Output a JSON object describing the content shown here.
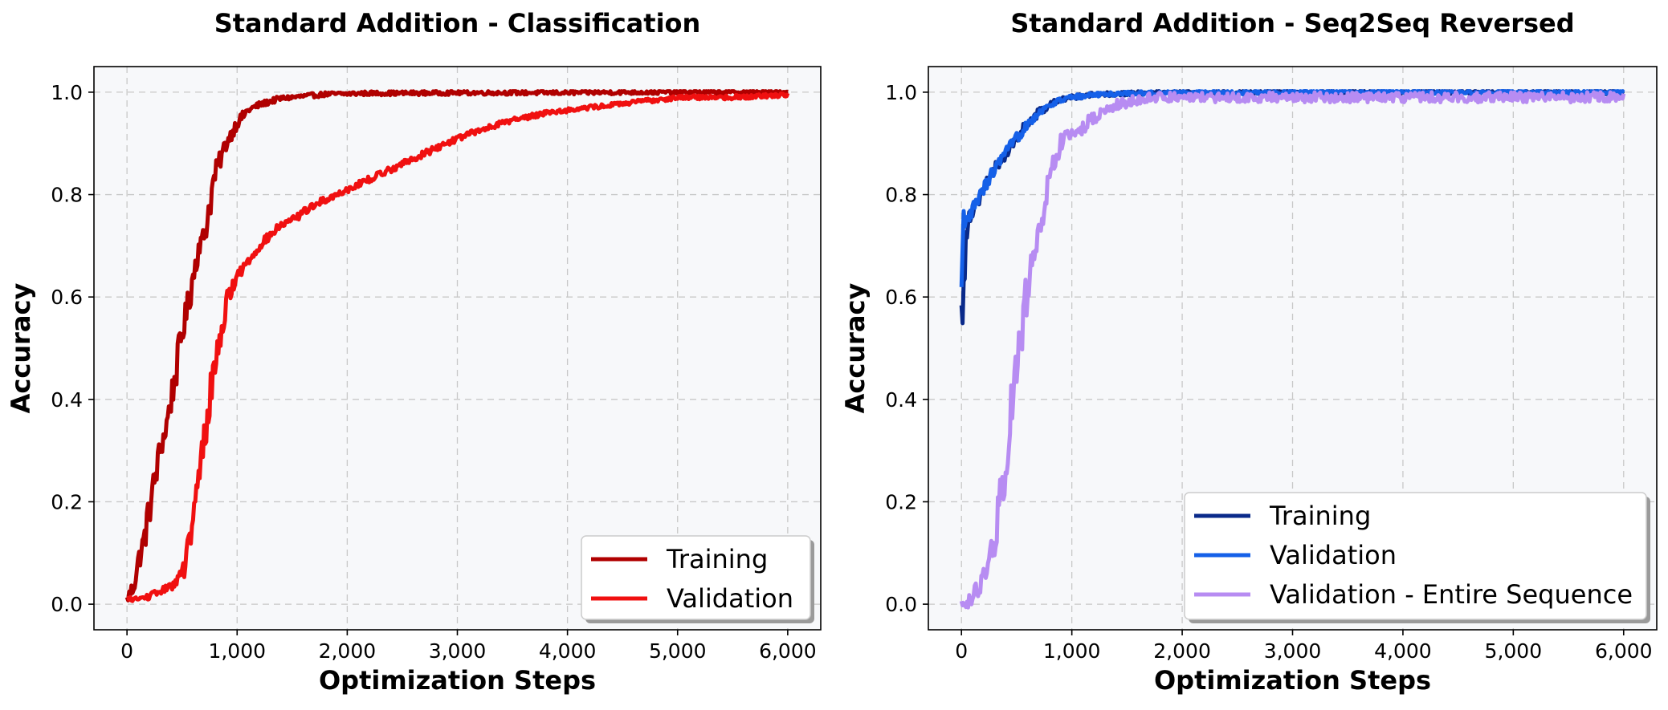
{
  "chart_data": [
    {
      "type": "line",
      "title": "Standard Addition - Classification",
      "xlabel": "Optimization Steps",
      "ylabel": "Accuracy",
      "xlim": [
        -300,
        6300
      ],
      "ylim": [
        -0.05,
        1.05
      ],
      "xticks": [
        0,
        1000,
        2000,
        3000,
        4000,
        5000,
        6000
      ],
      "xtick_labels": [
        "0",
        "1,000",
        "2,000",
        "3,000",
        "4,000",
        "5,000",
        "6,000"
      ],
      "yticks": [
        0.0,
        0.2,
        0.4,
        0.6,
        0.8,
        1.0
      ],
      "ytick_labels": [
        "0.0",
        "0.2",
        "0.4",
        "0.6",
        "0.8",
        "1.0"
      ],
      "grid": true,
      "legend_position": "lower-right",
      "series": [
        {
          "name": "Training",
          "color": "#b00000",
          "x": [
            0,
            50,
            100,
            150,
            200,
            250,
            300,
            350,
            400,
            450,
            500,
            550,
            600,
            650,
            700,
            750,
            800,
            850,
            900,
            950,
            1000,
            1100,
            1200,
            1300,
            1400,
            1500,
            1600,
            1700,
            1800,
            2000,
            2200,
            2500,
            3000,
            3500,
            4000,
            4500,
            5000,
            5500,
            6000
          ],
          "y": [
            0.01,
            0.03,
            0.08,
            0.12,
            0.18,
            0.24,
            0.3,
            0.34,
            0.4,
            0.46,
            0.53,
            0.58,
            0.64,
            0.7,
            0.72,
            0.78,
            0.84,
            0.87,
            0.9,
            0.92,
            0.94,
            0.965,
            0.975,
            0.982,
            0.988,
            0.99,
            0.992,
            0.994,
            0.996,
            0.997,
            0.998,
            0.998,
            0.999,
            0.999,
            0.999,
            1.0,
            1.0,
            1.0,
            1.0
          ]
        },
        {
          "name": "Validation",
          "color": "#f01010",
          "x": [
            0,
            100,
            200,
            300,
            400,
            500,
            550,
            600,
            650,
            700,
            750,
            800,
            850,
            900,
            950,
            1000,
            1100,
            1200,
            1300,
            1400,
            1500,
            1600,
            1700,
            1800,
            1900,
            2000,
            2200,
            2400,
            2600,
            2800,
            3000,
            3200,
            3400,
            3600,
            3800,
            4000,
            4200,
            4400,
            4600,
            4800,
            5000,
            5500,
            6000
          ],
          "y": [
            0.01,
            0.01,
            0.015,
            0.025,
            0.035,
            0.06,
            0.1,
            0.16,
            0.24,
            0.32,
            0.4,
            0.47,
            0.53,
            0.58,
            0.62,
            0.64,
            0.67,
            0.7,
            0.72,
            0.74,
            0.75,
            0.765,
            0.78,
            0.79,
            0.8,
            0.81,
            0.83,
            0.85,
            0.87,
            0.89,
            0.91,
            0.925,
            0.94,
            0.95,
            0.96,
            0.965,
            0.97,
            0.975,
            0.98,
            0.985,
            0.99,
            0.99,
            0.995
          ]
        }
      ]
    },
    {
      "type": "line",
      "title": "Standard Addition - Seq2Seq Reversed",
      "xlabel": "Optimization Steps",
      "ylabel": "Accuracy",
      "xlim": [
        -300,
        6300
      ],
      "ylim": [
        -0.05,
        1.05
      ],
      "xticks": [
        0,
        1000,
        2000,
        3000,
        4000,
        5000,
        6000
      ],
      "xtick_labels": [
        "0",
        "1,000",
        "2,000",
        "3,000",
        "4,000",
        "5,000",
        "6,000"
      ],
      "yticks": [
        0.0,
        0.2,
        0.4,
        0.6,
        0.8,
        1.0
      ],
      "ytick_labels": [
        "0.0",
        "0.2",
        "0.4",
        "0.6",
        "0.8",
        "1.0"
      ],
      "grid": true,
      "legend_position": "lower-right",
      "series": [
        {
          "name": "Training",
          "color": "#0a2a8a",
          "x": [
            0,
            10,
            20,
            40,
            60,
            80,
            100,
            150,
            200,
            250,
            300,
            400,
            500,
            600,
            700,
            800,
            900,
            1000,
            1200,
            1500,
            2000,
            3000,
            4000,
            5000,
            6000
          ],
          "y": [
            0.53,
            0.6,
            0.7,
            0.73,
            0.75,
            0.76,
            0.77,
            0.79,
            0.81,
            0.83,
            0.85,
            0.88,
            0.91,
            0.94,
            0.96,
            0.975,
            0.985,
            0.99,
            0.995,
            0.998,
            0.999,
            1.0,
            1.0,
            1.0,
            1.0
          ]
        },
        {
          "name": "Validation",
          "color": "#1560e8",
          "x": [
            0,
            20,
            40,
            60,
            80,
            100,
            150,
            200,
            250,
            300,
            400,
            500,
            600,
            700,
            800,
            900,
            1000,
            1200,
            1500,
            2000,
            3000,
            4000,
            5000,
            6000
          ],
          "y": [
            0.58,
            0.7,
            0.73,
            0.75,
            0.76,
            0.77,
            0.79,
            0.81,
            0.83,
            0.85,
            0.88,
            0.91,
            0.94,
            0.96,
            0.975,
            0.985,
            0.99,
            0.995,
            0.998,
            0.999,
            1.0,
            1.0,
            1.0,
            1.0
          ]
        },
        {
          "name": "Validation - Entire Sequence",
          "color": "#b78cf2",
          "x": [
            0,
            50,
            100,
            150,
            200,
            250,
            300,
            350,
            400,
            450,
            500,
            550,
            600,
            650,
            700,
            750,
            800,
            850,
            900,
            1000,
            1100,
            1200,
            1300,
            1400,
            1500,
            1600,
            1800,
            2000,
            2500,
            3000,
            3500,
            4000,
            4500,
            5000,
            5500,
            6000
          ],
          "y": [
            0.0,
            0.005,
            0.01,
            0.03,
            0.05,
            0.08,
            0.12,
            0.2,
            0.28,
            0.38,
            0.46,
            0.54,
            0.62,
            0.67,
            0.72,
            0.78,
            0.84,
            0.87,
            0.9,
            0.92,
            0.93,
            0.95,
            0.96,
            0.975,
            0.98,
            0.985,
            0.99,
            0.99,
            0.99,
            0.99,
            0.99,
            0.99,
            0.99,
            0.99,
            0.99,
            0.99
          ]
        }
      ]
    }
  ]
}
